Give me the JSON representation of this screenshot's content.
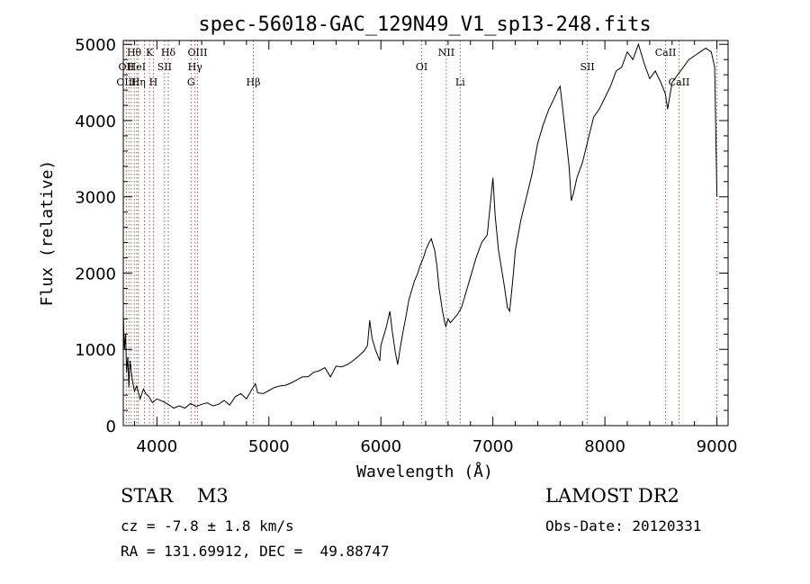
{
  "chart_data": {
    "type": "line",
    "title": "spec-56018-GAC_129N49_V1_sp13-248.fits",
    "xlabel": "Wavelength (Å)",
    "ylabel": "Flux (relative)",
    "xlim": [
      3700,
      9100
    ],
    "ylim": [
      0,
      5050
    ],
    "xticks": [
      4000,
      5000,
      6000,
      7000,
      8000,
      9000
    ],
    "yticks": [
      0,
      1000,
      2000,
      3000,
      4000,
      5000
    ],
    "series": [
      {
        "x": [
          3700,
          3710,
          3720,
          3730,
          3740,
          3750,
          3760,
          3780,
          3800,
          3820,
          3850,
          3880,
          3900,
          3930,
          3960,
          4000,
          4050,
          4100,
          4150,
          4200,
          4250,
          4300,
          4350,
          4400,
          4450,
          4500,
          4550,
          4600,
          4650,
          4700,
          4750,
          4800,
          4850,
          4880,
          4900,
          4950,
          5000,
          5050,
          5100,
          5150,
          5200,
          5250,
          5300,
          5350,
          5400,
          5450,
          5500,
          5550,
          5600,
          5650,
          5700,
          5750,
          5800,
          5850,
          5880,
          5900,
          5920,
          5950,
          5990,
          6000,
          6050,
          6080,
          6100,
          6130,
          6150,
          6170,
          6200,
          6220,
          6250,
          6280,
          6300,
          6330,
          6350,
          6380,
          6400,
          6430,
          6450,
          6480,
          6500,
          6520,
          6550,
          6570,
          6580,
          6600,
          6620,
          6650,
          6680,
          6700,
          6720,
          6750,
          6800,
          6850,
          6900,
          6950,
          6980,
          7000,
          7020,
          7050,
          7100,
          7130,
          7150,
          7180,
          7200,
          7250,
          7300,
          7350,
          7400,
          7450,
          7500,
          7550,
          7580,
          7600,
          7620,
          7650,
          7680,
          7700,
          7720,
          7750,
          7800,
          7850,
          7900,
          7950,
          8000,
          8050,
          8100,
          8150,
          8200,
          8250,
          8300,
          8350,
          8400,
          8450,
          8500,
          8540,
          8560,
          8600,
          8650,
          8700,
          8750,
          8800,
          8850,
          8900,
          8950,
          8980,
          9000
        ],
        "y": [
          1450,
          1000,
          1200,
          700,
          900,
          500,
          850,
          600,
          450,
          520,
          350,
          480,
          420,
          380,
          300,
          350,
          320,
          280,
          230,
          260,
          230,
          290,
          250,
          280,
          300,
          260,
          280,
          330,
          270,
          380,
          420,
          350,
          480,
          550,
          430,
          420,
          460,
          500,
          520,
          530,
          560,
          600,
          640,
          640,
          700,
          720,
          760,
          640,
          780,
          770,
          800,
          850,
          910,
          980,
          1050,
          1380,
          1150,
          1000,
          850,
          1050,
          1300,
          1500,
          1250,
          950,
          800,
          1000,
          1250,
          1400,
          1650,
          1800,
          1900,
          2000,
          2100,
          2200,
          2300,
          2400,
          2450,
          2300,
          2100,
          1800,
          1500,
          1350,
          1300,
          1400,
          1350,
          1400,
          1450,
          1500,
          1550,
          1700,
          1950,
          2200,
          2400,
          2500,
          2950,
          3250,
          2750,
          2300,
          1850,
          1550,
          1500,
          1950,
          2300,
          2700,
          3000,
          3300,
          3700,
          3950,
          4150,
          4300,
          4400,
          4450,
          4200,
          3800,
          3400,
          2950,
          3050,
          3250,
          3450,
          3750,
          4050,
          4150,
          4300,
          4450,
          4650,
          4700,
          4900,
          4800,
          5000,
          4750,
          4550,
          4650,
          4500,
          4350,
          4150,
          4500,
          4600,
          4700,
          4800,
          4850,
          4900,
          4950,
          4900,
          4700,
          3000
        ]
      }
    ],
    "annotations": [
      {
        "label": "Hθ",
        "x": 3797,
        "row": 1
      },
      {
        "label": "K",
        "x": 3934,
        "row": 1
      },
      {
        "label": "Hδ",
        "x": 4102,
        "row": 1
      },
      {
        "label": "OIII",
        "x": 4363,
        "row": 1
      },
      {
        "label": "NII",
        "x": 6584,
        "row": 1
      },
      {
        "label": "CaII",
        "x": 8542,
        "row": 1
      },
      {
        "label": "OII",
        "x": 3727,
        "row": 2
      },
      {
        "label": "HeI",
        "x": 3820,
        "row": 2
      },
      {
        "label": "SII",
        "x": 4069,
        "row": 2
      },
      {
        "label": "Hγ",
        "x": 4341,
        "row": 2
      },
      {
        "label": "OI",
        "x": 6364,
        "row": 2
      },
      {
        "label": "SII",
        "x": 7843,
        "row": 2
      },
      {
        "label": "OIII",
        "x": 3727,
        "row": 3
      },
      {
        "label": "Hη",
        "x": 3835,
        "row": 3
      },
      {
        "label": "H",
        "x": 3969,
        "row": 3
      },
      {
        "label": "G",
        "x": 4305,
        "row": 3
      },
      {
        "label": "Hβ",
        "x": 4861,
        "row": 3
      },
      {
        "label": "Li",
        "x": 6708,
        "row": 3
      },
      {
        "label": "CaII",
        "x": 8662,
        "row": 3
      }
    ],
    "line_markers": [
      3727,
      3750,
      3771,
      3798,
      3820,
      3835,
      3889,
      3934,
      3969,
      4069,
      4102,
      4305,
      4341,
      4363,
      4861,
      6364,
      6584,
      6708,
      7843,
      8542,
      8662,
      9000
    ],
    "grid": false
  },
  "info": {
    "star_label": "STAR    M3",
    "survey": "LAMOST DR2",
    "velocity": "cz = -7.8 ± 1.8 km/s",
    "obs_date": "Obs-Date: 20120331",
    "coords": "RA = 131.69912, DEC =  49.88747"
  }
}
